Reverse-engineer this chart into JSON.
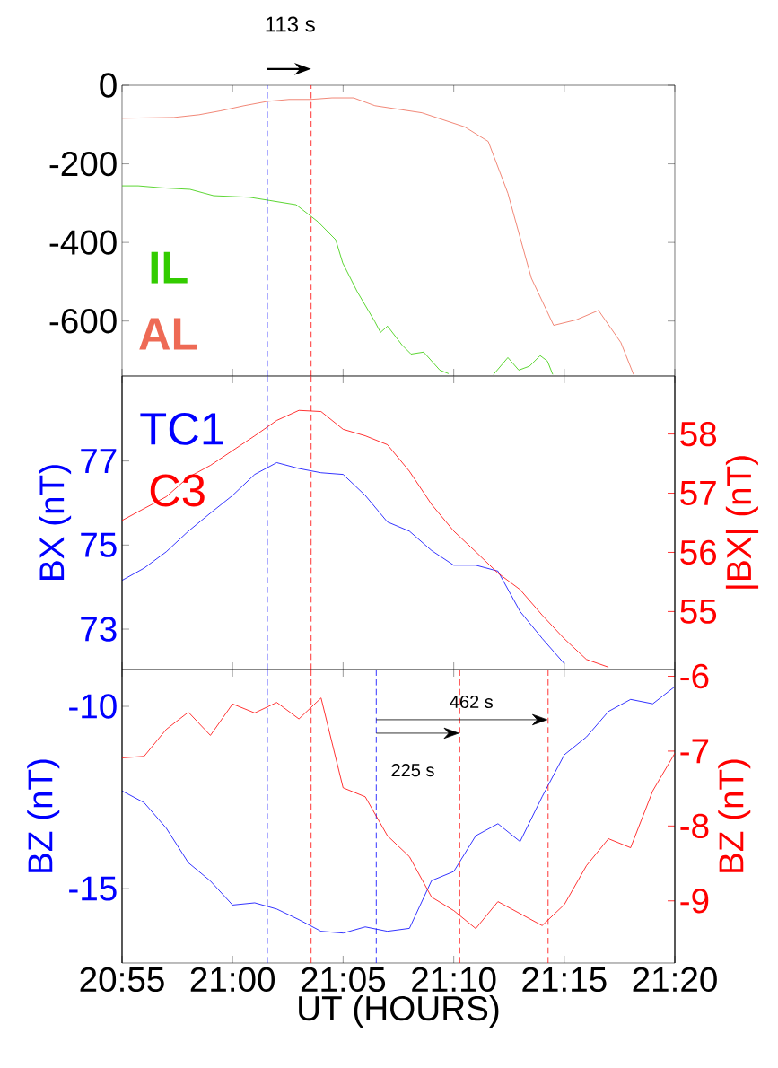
{
  "chart_data": [
    {
      "type": "line",
      "xlim": [
        20.9167,
        21.3333
      ],
      "ylim": [
        -740,
        0
      ],
      "yticks": [
        0,
        -200,
        -400,
        -600
      ],
      "tick_labels": "y",
      "marker": "none",
      "xticks": [
        {
          "value": 20.9167,
          "label": null
        },
        {
          "value": 21.0,
          "label": null
        },
        {
          "value": 21.0833,
          "label": null
        },
        {
          "value": 21.1667,
          "label": null
        },
        {
          "value": 21.25,
          "label": null
        },
        {
          "value": 21.3333,
          "label": null
        }
      ],
      "series": [
        {
          "name": "IL",
          "color": "#33cc00",
          "x": [
            20.9167,
            20.9289,
            20.9465,
            20.968,
            20.9857,
            21.0127,
            21.0277,
            21.0479,
            21.0642,
            21.0777,
            21.083,
            21.0939,
            21.1073,
            21.1115,
            21.1168,
            21.1277,
            21.1345,
            21.144,
            21.1562,
            21.1628,
            21.18,
            21.1967,
            21.2075,
            21.2157,
            21.2238,
            21.2318,
            21.2373,
            21.2413
          ],
          "values": [
            -256,
            -256,
            -261,
            -265,
            -281,
            -285,
            -293,
            -304,
            -347,
            -393,
            -452,
            -525,
            -602,
            -629,
            -613,
            -661,
            -684,
            -679,
            -725,
            -734,
            null,
            -736,
            -693,
            -725,
            -715,
            -688,
            -702,
            -736
          ]
        },
        {
          "name": "AL",
          "color": "#ee6a55",
          "x": [
            20.9167,
            20.9558,
            20.9748,
            20.991,
            21.0087,
            21.0262,
            21.0425,
            21.0587,
            21.075,
            21.0912,
            21.1073,
            21.1427,
            21.1588,
            21.175,
            21.1927,
            21.2075,
            21.2252,
            21.242,
            21.259,
            21.2758,
            21.2927,
            21.3022
          ],
          "values": [
            -84,
            -82,
            -75,
            -65,
            -52,
            -41,
            -36,
            -36,
            -32,
            -32,
            -52,
            -70,
            -88,
            -106,
            -143,
            -275,
            -491,
            -611,
            -597,
            -573,
            -655,
            -736
          ]
        }
      ],
      "ref_lines": [
        {
          "axis": "x",
          "value": 21.0262,
          "color": "#0000ff",
          "line_style": "dashed"
        },
        {
          "axis": "x",
          "value": 21.0592,
          "color": "#ff0000",
          "line_style": "dashed"
        }
      ],
      "annotations": [
        "113 s"
      ]
    },
    {
      "type": "line",
      "xlim": [
        20.9167,
        21.3333
      ],
      "ylim": [
        72.04,
        79.02
      ],
      "yticks": [
        73,
        75,
        77
      ],
      "y2lim": [
        54.02,
        58.98
      ],
      "y2ticks": [
        55,
        56,
        57,
        58
      ],
      "tick_labels": "y",
      "marker": "none",
      "ylabel": "BX (nT)",
      "y2label": "|BX| (nT)",
      "xticks": [
        {
          "value": 20.9167,
          "label": null
        },
        {
          "value": 21.0,
          "label": null
        },
        {
          "value": 21.0833,
          "label": null
        },
        {
          "value": 21.1667,
          "label": null
        },
        {
          "value": 21.25,
          "label": null
        },
        {
          "value": 21.3333,
          "label": null
        }
      ],
      "x": [
        20.9167,
        20.9333,
        20.95,
        20.9667,
        20.9833,
        21.0,
        21.0167,
        21.0333,
        21.05,
        21.0667,
        21.0833,
        21.1,
        21.1167,
        21.1333,
        21.15,
        21.1667,
        21.1833,
        21.2,
        21.2167,
        21.2333,
        21.25,
        21.2667,
        21.2833
      ],
      "series": [
        {
          "name": "TC1",
          "color": "#0000ff",
          "values": [
            74.16,
            74.45,
            74.84,
            75.33,
            75.76,
            76.18,
            76.68,
            76.96,
            76.82,
            76.72,
            76.68,
            76.18,
            75.55,
            75.33,
            74.87,
            74.52,
            74.52,
            74.38,
            73.42,
            72.78,
            72.18,
            null,
            null
          ]
        },
        {
          "name": "C3",
          "color": "#ff0000",
          "axis": "y2",
          "values": [
            56.54,
            56.74,
            56.94,
            57.27,
            57.47,
            57.72,
            57.97,
            58.23,
            58.4,
            58.38,
            58.08,
            57.97,
            57.82,
            57.37,
            56.81,
            56.36,
            56.01,
            55.65,
            55.37,
            54.94,
            54.54,
            54.19,
            54.06
          ]
        }
      ],
      "ref_lines": [
        {
          "axis": "x",
          "value": 21.0262,
          "color": "#0000ff",
          "line_style": "dashed"
        },
        {
          "axis": "x",
          "value": 21.0592,
          "color": "#ff0000",
          "line_style": "dashed"
        }
      ]
    },
    {
      "type": "line",
      "xlim": [
        20.9167,
        21.3333
      ],
      "ylim": [
        -17.04,
        -8.99
      ],
      "yticks": [
        -10,
        -15
      ],
      "y2lim": [
        -9.83,
        -5.91
      ],
      "y2ticks": [
        -6,
        -7,
        -8,
        -9
      ],
      "marker": "none",
      "ylabel": "BZ (nT)",
      "y2label": "BZ (nT)",
      "xlabel": "UT (HOURS)",
      "xticks": [
        {
          "value": 20.9167,
          "label": "20:55"
        },
        {
          "value": 21.0,
          "label": "21:00"
        },
        {
          "value": 21.0833,
          "label": "21:05"
        },
        {
          "value": 21.1667,
          "label": "21:10"
        },
        {
          "value": 21.25,
          "label": "21:15"
        },
        {
          "value": 21.3333,
          "label": "21:20"
        }
      ],
      "x": [
        20.9167,
        20.9333,
        20.95,
        20.9667,
        20.9833,
        21.0,
        21.0167,
        21.0333,
        21.05,
        21.0667,
        21.0833,
        21.1,
        21.1167,
        21.1333,
        21.15,
        21.1667,
        21.1833,
        21.2,
        21.2167,
        21.2333,
        21.25,
        21.2667,
        21.2833,
        21.3,
        21.3167,
        21.3333
      ],
      "series": [
        {
          "color": "#0000ff",
          "values": [
            -12.32,
            -12.64,
            -13.34,
            -14.29,
            -14.79,
            -15.45,
            -15.39,
            -15.56,
            -15.85,
            -16.17,
            -16.22,
            -16.05,
            -16.17,
            -16.09,
            -14.78,
            -14.53,
            -13.55,
            -13.22,
            -13.71,
            -12.48,
            -11.33,
            -10.84,
            -10.14,
            -9.81,
            -9.93,
            -9.46
          ]
        },
        {
          "color": "#ff0000",
          "axis": "y2",
          "values": [
            -7.09,
            -7.07,
            -6.71,
            -6.48,
            -6.79,
            -6.37,
            -6.49,
            -6.35,
            -6.57,
            -6.29,
            -7.49,
            -7.61,
            -8.13,
            -8.41,
            -8.95,
            -9.13,
            -9.37,
            -9.01,
            -9.17,
            -9.33,
            -9.05,
            -8.53,
            -8.17,
            -8.29,
            -7.53,
            -7.03
          ]
        }
      ],
      "ref_lines": [
        {
          "axis": "x",
          "value": 21.0262,
          "color": "#0000ff",
          "line_style": "dashed"
        },
        {
          "axis": "x",
          "value": 21.0592,
          "color": "#ff0000",
          "line_style": "dashed"
        },
        {
          "axis": "x",
          "value": 21.1083,
          "color": "#0000ff",
          "line_style": "dashed"
        },
        {
          "axis": "x",
          "value": 21.1712,
          "color": "#ff0000",
          "line_style": "dashed"
        },
        {
          "axis": "x",
          "value": 21.2378,
          "color": "#ff0000",
          "line_style": "dashed"
        }
      ],
      "annotations": [
        "462 s",
        "225 s"
      ]
    }
  ]
}
